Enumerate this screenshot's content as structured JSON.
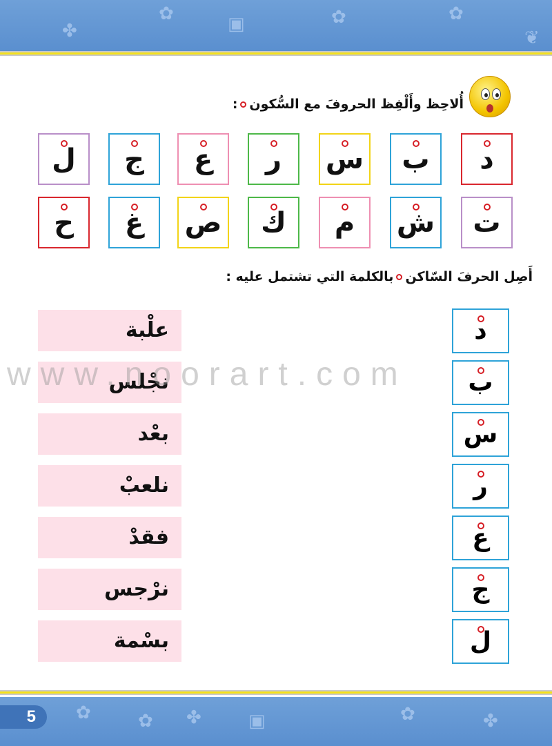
{
  "instruction1": "أُلاحِظ وأَلْفِظ الحروفَ مع السُّكون",
  "instruction2a": "أَصِل الحرفَ السّاكن",
  "instruction2b": "بالكلمة التي تشتمل عليه :",
  "colon": ":",
  "row1": [
    {
      "l": "د",
      "c": "#d9272e"
    },
    {
      "l": "ب",
      "c": "#2ea3d8"
    },
    {
      "l": "س",
      "c": "#f2d417"
    },
    {
      "l": "ر",
      "c": "#4db848"
    },
    {
      "l": "ع",
      "c": "#ee8fb2"
    },
    {
      "l": "ج",
      "c": "#2ea3d8"
    },
    {
      "l": "ل",
      "c": "#b98fc8"
    }
  ],
  "row2": [
    {
      "l": "ت",
      "c": "#b98fc8"
    },
    {
      "l": "ش",
      "c": "#2ea3d8"
    },
    {
      "l": "م",
      "c": "#ee8fb2"
    },
    {
      "l": "ك",
      "c": "#4db848"
    },
    {
      "l": "ص",
      "c": "#f2d417"
    },
    {
      "l": "غ",
      "c": "#2ea3d8"
    },
    {
      "l": "ح",
      "c": "#d9272e"
    }
  ],
  "match_letters": [
    "د",
    "ب",
    "س",
    "ر",
    "ع",
    "ج",
    "ل"
  ],
  "match_words": [
    "علْبة",
    "نجْلس",
    "بعْد",
    "نلعبْ",
    "فقدْ",
    "نرْجس",
    "بسْمة"
  ],
  "watermark": "www.noorart.com",
  "page_number": "5",
  "colors": {
    "band": "#5a8fcf",
    "stripe": "#f5e21a",
    "sukun": "#d61f26",
    "word_bg": "#fde0e8"
  }
}
